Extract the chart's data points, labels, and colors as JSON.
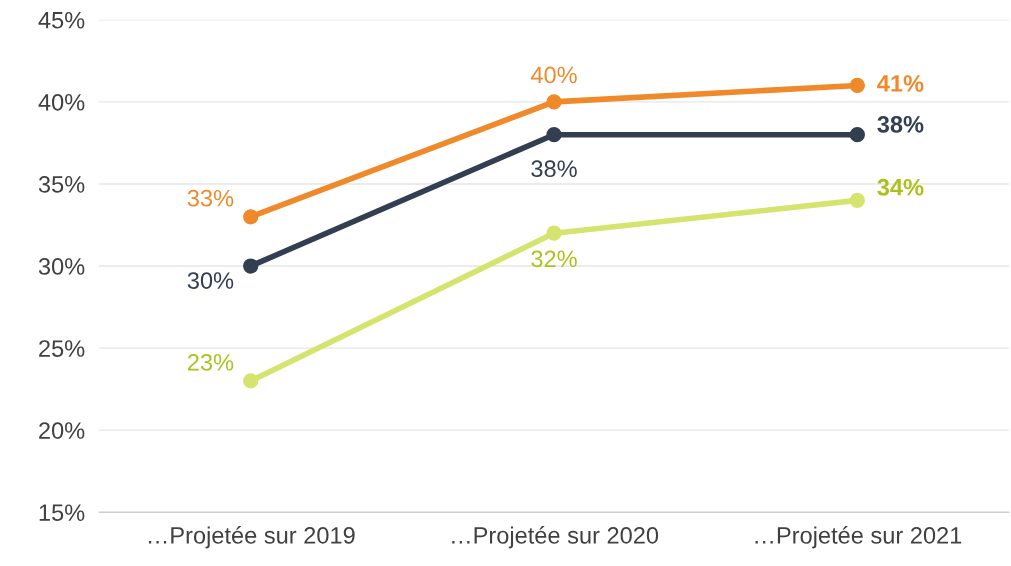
{
  "chart_data": {
    "type": "line",
    "categories": [
      "…Projetée sur 2019",
      "…Projetée sur 2020",
      "…Projetée sur 2021"
    ],
    "series": [
      {
        "color": "#f0892a",
        "values": [
          33,
          40,
          41
        ],
        "value_labels": [
          "33%",
          "40%",
          "41%"
        ]
      },
      {
        "color": "#333f50",
        "values": [
          30,
          38,
          38
        ],
        "value_labels": [
          "30%",
          "38%",
          "38%"
        ]
      },
      {
        "color": "#d5e46e",
        "values": [
          23,
          32,
          34
        ],
        "value_labels": [
          "23%",
          "32%",
          "34%"
        ]
      }
    ],
    "ylim": [
      15,
      45
    ],
    "yticks": [
      {
        "value": 15,
        "label": "15%"
      },
      {
        "value": 20,
        "label": "20%"
      },
      {
        "value": 25,
        "label": "25%"
      },
      {
        "value": 30,
        "label": "30%"
      },
      {
        "value": 35,
        "label": "35%"
      },
      {
        "value": 40,
        "label": "40%"
      },
      {
        "value": 45,
        "label": "45%"
      }
    ],
    "grid": "y",
    "marker": "circle",
    "line_style": "solid",
    "legend": false
  }
}
